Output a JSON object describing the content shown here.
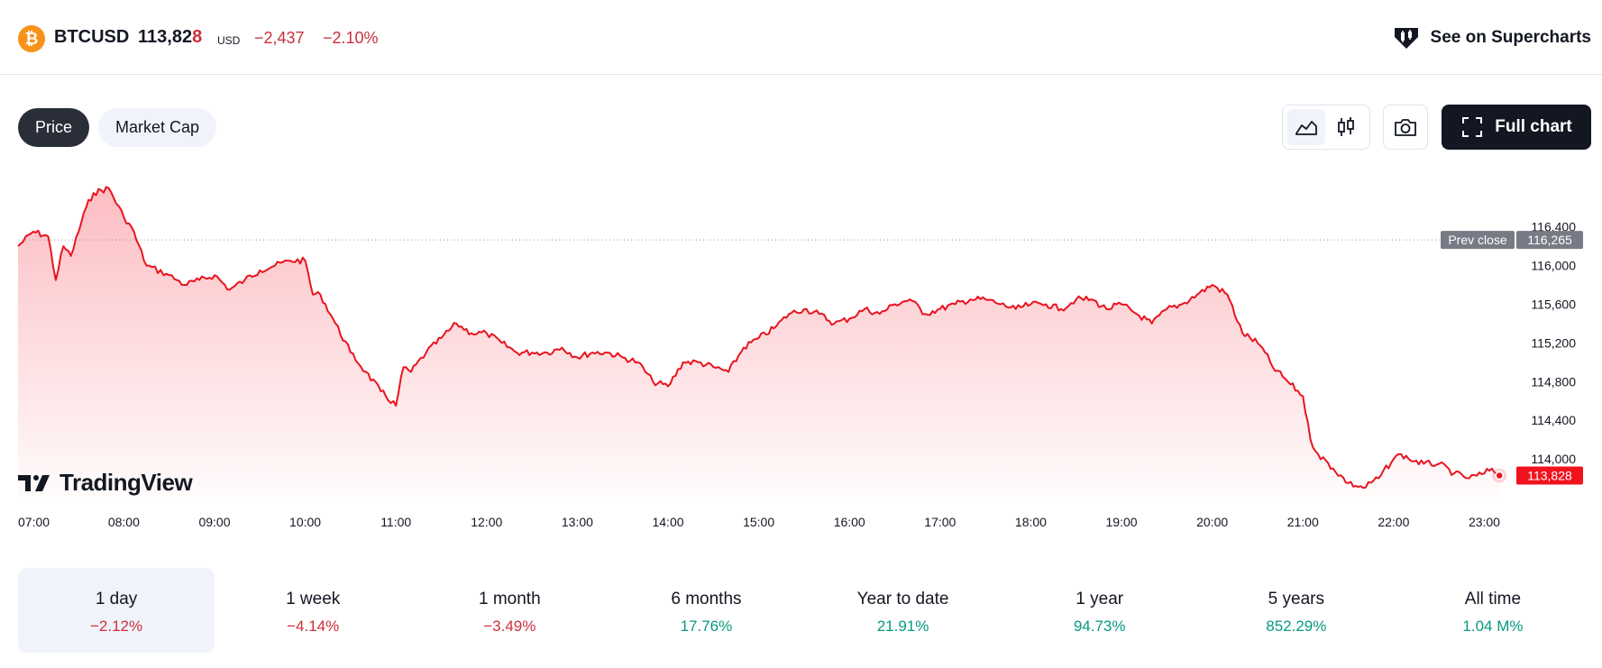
{
  "header": {
    "coin_icon": "bitcoin-icon",
    "coin_glyph": "₿",
    "symbol": "BTCUSD",
    "price_main": "113,82",
    "price_last_digit": "8",
    "currency": "USD",
    "change_abs": "−2,437",
    "change_pct": "−2.10%",
    "supercharts_label": "See on Supercharts",
    "supercharts_icon": "supercharts-logo-icon"
  },
  "tabs": [
    {
      "label": "Price",
      "active": true
    },
    {
      "label": "Market Cap",
      "active": false
    }
  ],
  "toolbar": {
    "area_chart_icon": "area-chart-icon",
    "candles_icon": "candlestick-icon",
    "camera_icon": "camera-icon",
    "full_chart_label": "Full chart",
    "full_chart_icon": "fullscreen-icon"
  },
  "colors": {
    "line": "#e8141e",
    "negative": "#cc2f3c",
    "positive": "#089981",
    "prev_close_badge": "#787b86",
    "last_price_badge": "#f0131e"
  },
  "chart_data": {
    "type": "area",
    "ylim": [
      113600,
      116900
    ],
    "y_ticks": [
      116400,
      116000,
      115600,
      115200,
      114800,
      114400,
      114000
    ],
    "y_tick_labels": [
      "116,400",
      "116,000",
      "115,600",
      "115,200",
      "114,800",
      "114,400",
      "114,000"
    ],
    "x_ticks": [
      "07:00",
      "08:00",
      "09:00",
      "10:00",
      "11:00",
      "12:00",
      "13:00",
      "14:00",
      "15:00",
      "16:00",
      "17:00",
      "18:00",
      "19:00",
      "20:00",
      "21:00",
      "22:00",
      "23:00"
    ],
    "x_range": [
      "06:50",
      "23:20"
    ],
    "grid": false,
    "prev_close": {
      "label": "Prev close",
      "value": 116265,
      "value_label": "116,265"
    },
    "last_price": {
      "value": 113828,
      "value_label": "113,828"
    },
    "series": [
      {
        "x": [
          "06:50",
          "07:00",
          "07:10",
          "07:15",
          "07:20",
          "07:25",
          "07:35",
          "07:40",
          "07:50",
          "08:00",
          "08:05",
          "08:15",
          "08:30",
          "08:35",
          "08:40",
          "08:50",
          "09:00",
          "09:10",
          "09:20",
          "09:30",
          "09:40",
          "09:50",
          "10:00",
          "10:05",
          "10:10",
          "10:20",
          "10:30",
          "10:40",
          "10:50",
          "11:00",
          "11:05",
          "11:10",
          "11:20",
          "11:30",
          "11:40",
          "11:50",
          "12:00",
          "12:10",
          "12:20",
          "12:30",
          "12:40",
          "12:50",
          "13:00",
          "13:10",
          "13:20",
          "13:30",
          "13:40",
          "13:50",
          "14:00",
          "14:10",
          "14:20",
          "14:30",
          "14:40",
          "14:50",
          "15:00",
          "15:10",
          "15:20",
          "15:30",
          "15:40",
          "15:50",
          "16:00",
          "16:10",
          "16:20",
          "16:30",
          "16:40",
          "16:50",
          "17:00",
          "17:10",
          "17:20",
          "17:30",
          "17:40",
          "17:50",
          "18:00",
          "18:10",
          "18:20",
          "18:30",
          "18:40",
          "18:50",
          "19:00",
          "19:10",
          "19:20",
          "19:30",
          "19:40",
          "19:50",
          "20:00",
          "20:10",
          "20:20",
          "20:30",
          "20:35",
          "20:40",
          "20:50",
          "21:00",
          "21:05",
          "21:10",
          "21:20",
          "21:30",
          "21:40",
          "21:50",
          "22:00",
          "22:05",
          "22:10",
          "22:20",
          "22:30",
          "22:40",
          "22:50",
          "23:00",
          "23:05",
          "23:10"
        ],
        "values": [
          116200,
          116350,
          116300,
          115850,
          116200,
          116100,
          116600,
          116750,
          116800,
          116500,
          116400,
          116000,
          115900,
          115850,
          115800,
          115850,
          115900,
          115750,
          115850,
          115950,
          116000,
          116050,
          116050,
          115700,
          115700,
          115400,
          115100,
          114900,
          114700,
          114550,
          114950,
          114900,
          115100,
          115250,
          115400,
          115300,
          115300,
          115200,
          115100,
          115100,
          115100,
          115150,
          115050,
          115100,
          115100,
          115050,
          115000,
          114800,
          114750,
          115000,
          115000,
          114950,
          114900,
          115150,
          115250,
          115350,
          115500,
          115550,
          115500,
          115400,
          115450,
          115550,
          115500,
          115600,
          115650,
          115500,
          115550,
          115600,
          115650,
          115650,
          115600,
          115550,
          115600,
          115600,
          115550,
          115650,
          115650,
          115550,
          115600,
          115500,
          115400,
          115550,
          115600,
          115700,
          115800,
          115700,
          115300,
          115200,
          115100,
          114950,
          114800,
          114650,
          114200,
          114050,
          113900,
          113750,
          113700,
          113800,
          114000,
          114050,
          114000,
          113950,
          113950,
          113850,
          113800,
          113850,
          113900,
          113828
        ]
      }
    ]
  },
  "branding": {
    "logo_icon": "tradingview-logo-icon",
    "logo_text": "TradingView"
  },
  "periods": [
    {
      "label": "1 day",
      "value": "−2.12%",
      "trend": "neg",
      "active": true
    },
    {
      "label": "1 week",
      "value": "−4.14%",
      "trend": "neg",
      "active": false
    },
    {
      "label": "1 month",
      "value": "−3.49%",
      "trend": "neg",
      "active": false
    },
    {
      "label": "6 months",
      "value": "17.76%",
      "trend": "pos",
      "active": false
    },
    {
      "label": "Year to date",
      "value": "21.91%",
      "trend": "pos",
      "active": false
    },
    {
      "label": "1 year",
      "value": "94.73%",
      "trend": "pos",
      "active": false
    },
    {
      "label": "5 years",
      "value": "852.29%",
      "trend": "pos",
      "active": false
    },
    {
      "label": "All time",
      "value": "1.04 M%",
      "trend": "pos",
      "active": false
    }
  ]
}
